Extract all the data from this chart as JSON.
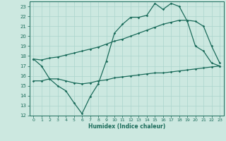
{
  "xlabel": "Humidex (Indice chaleur)",
  "bg_color": "#cce8e0",
  "grid_color": "#aad4cc",
  "line_color": "#1a6b5a",
  "xlim": [
    -0.5,
    23.5
  ],
  "ylim": [
    12,
    23.5
  ],
  "xticks": [
    0,
    1,
    2,
    3,
    4,
    5,
    6,
    7,
    8,
    9,
    10,
    11,
    12,
    13,
    14,
    15,
    16,
    17,
    18,
    19,
    20,
    21,
    22,
    23
  ],
  "yticks": [
    12,
    13,
    14,
    15,
    16,
    17,
    18,
    19,
    20,
    21,
    22,
    23
  ],
  "line1_x": [
    0,
    1,
    2,
    3,
    4,
    5,
    6,
    7,
    8,
    9,
    10,
    11,
    12,
    13,
    14,
    15,
    16,
    17,
    18,
    19,
    20,
    21,
    22,
    23
  ],
  "line1_y": [
    17.7,
    17.0,
    15.7,
    15.0,
    14.5,
    13.3,
    12.2,
    13.9,
    15.2,
    17.5,
    20.3,
    21.2,
    21.9,
    21.9,
    22.1,
    23.3,
    22.7,
    23.3,
    23.0,
    21.5,
    19.0,
    18.5,
    17.3,
    17.0
  ],
  "line2_x": [
    0,
    1,
    2,
    3,
    4,
    5,
    6,
    7,
    8,
    9,
    10,
    11,
    12,
    13,
    14,
    15,
    16,
    17,
    18,
    19,
    20,
    21,
    22,
    23
  ],
  "line2_y": [
    17.7,
    17.6,
    17.8,
    17.9,
    18.1,
    18.3,
    18.5,
    18.7,
    18.9,
    19.2,
    19.5,
    19.7,
    20.0,
    20.3,
    20.6,
    20.9,
    21.2,
    21.4,
    21.6,
    21.6,
    21.5,
    21.0,
    19.0,
    17.3
  ],
  "line3_x": [
    0,
    1,
    2,
    3,
    4,
    5,
    6,
    7,
    8,
    9,
    10,
    11,
    12,
    13,
    14,
    15,
    16,
    17,
    18,
    19,
    20,
    21,
    22,
    23
  ],
  "line3_y": [
    15.5,
    15.5,
    15.7,
    15.7,
    15.5,
    15.3,
    15.2,
    15.3,
    15.5,
    15.6,
    15.8,
    15.9,
    16.0,
    16.1,
    16.2,
    16.3,
    16.3,
    16.4,
    16.5,
    16.6,
    16.7,
    16.8,
    16.9,
    17.0
  ]
}
